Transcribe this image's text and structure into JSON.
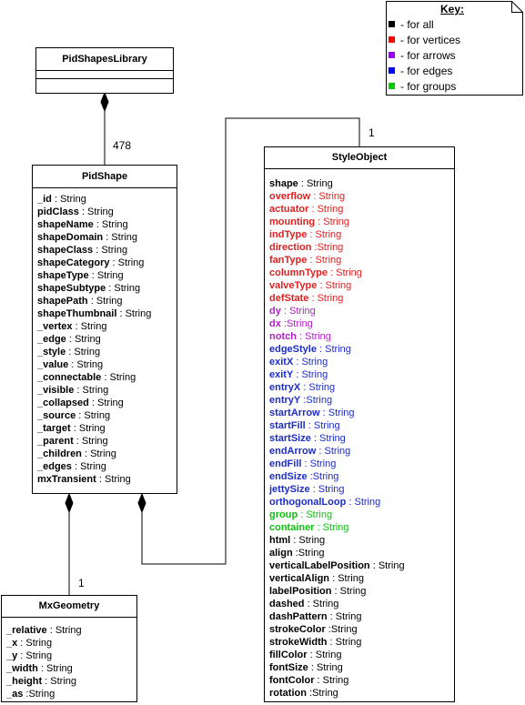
{
  "key": {
    "title": "Key:",
    "items": [
      {
        "label": "- for all",
        "color": "#000000"
      },
      {
        "label": "- for vertices",
        "color": "#ff0000"
      },
      {
        "label": "- for arrows",
        "color": "#9900ff"
      },
      {
        "label": "- for edges",
        "color": "#0000ff"
      },
      {
        "label": "- for groups",
        "color": "#00cc00"
      }
    ]
  },
  "colors": {
    "all": "#000000",
    "vertices": "#e02020",
    "arrows": "#b020c8",
    "edges": "#1c2cc8",
    "groups": "#10c010"
  },
  "classes": {
    "library": {
      "name": "PidShapesLibrary",
      "attributes": []
    },
    "pidShape": {
      "name": "PidShape",
      "attributes": [
        {
          "name": "_id",
          "type": " : String",
          "group": "all"
        },
        {
          "name": "pidClass",
          "type": " : String",
          "group": "all"
        },
        {
          "name": "shapeName",
          "type": " : String",
          "group": "all"
        },
        {
          "name": "shapeDomain",
          "type": " : String",
          "group": "all"
        },
        {
          "name": "shapeClass",
          "type": " : String",
          "group": "all"
        },
        {
          "name": "shapeCategory",
          "type": " : String",
          "group": "all"
        },
        {
          "name": "shapeType",
          "type": " : String",
          "group": "all"
        },
        {
          "name": "shapeSubtype",
          "type": " : String",
          "group": "all"
        },
        {
          "name": "shapePath",
          "type": " : String",
          "group": "all"
        },
        {
          "name": "shapeThumbnail",
          "type": " : String",
          "group": "all"
        },
        {
          "name": "_vertex",
          "type": " : String",
          "group": "all"
        },
        {
          "name": "_edge",
          "type": " : String",
          "group": "all"
        },
        {
          "name": "_style",
          "type": " : String",
          "group": "all"
        },
        {
          "name": "_value",
          "type": " : String",
          "group": "all"
        },
        {
          "name": "_connectable",
          "type": " : String",
          "group": "all"
        },
        {
          "name": "_visible",
          "type": " : String",
          "group": "all"
        },
        {
          "name": "_collapsed",
          "type": " : String",
          "group": "all"
        },
        {
          "name": "_source",
          "type": " : String",
          "group": "all"
        },
        {
          "name": "_target",
          "type": " : String",
          "group": "all"
        },
        {
          "name": "_parent",
          "type": " : String",
          "group": "all"
        },
        {
          "name": "_children",
          "type": " : String",
          "group": "all"
        },
        {
          "name": "_edges",
          "type": " : String",
          "group": "all"
        },
        {
          "name": "mxTransient",
          "type": " : String",
          "group": "all"
        }
      ]
    },
    "styleObject": {
      "name": "StyleObject",
      "attributes": [
        {
          "name": "shape",
          "type": " : String",
          "group": "all"
        },
        {
          "name": "overflow",
          "type": " : String",
          "group": "vertices"
        },
        {
          "name": "actuator",
          "type": " : String",
          "group": "vertices"
        },
        {
          "name": "mounting",
          "type": " : String",
          "group": "vertices"
        },
        {
          "name": "indType",
          "type": " : String",
          "group": "vertices"
        },
        {
          "name": "direction",
          "type": " :String",
          "group": "vertices"
        },
        {
          "name": "fanType",
          "type": " : String",
          "group": "vertices"
        },
        {
          "name": "columnType",
          "type": " : String",
          "group": "vertices"
        },
        {
          "name": "valveType",
          "type": " : String",
          "group": "vertices"
        },
        {
          "name": "defState",
          "type": " : String",
          "group": "vertices"
        },
        {
          "name": "dy",
          "type": " : String",
          "group": "arrows"
        },
        {
          "name": "dx",
          "type": " :String",
          "group": "arrows"
        },
        {
          "name": "notch",
          "type": " : String",
          "group": "arrows"
        },
        {
          "name": "edgeStyle",
          "type": " : String",
          "group": "edges"
        },
        {
          "name": "exitX",
          "type": " : String",
          "group": "edges"
        },
        {
          "name": "exitY",
          "type": " : String",
          "group": "edges"
        },
        {
          "name": "entryX",
          "type": " : String",
          "group": "edges"
        },
        {
          "name": "entryY",
          "type": " :String",
          "group": "edges"
        },
        {
          "name": "startArrow",
          "type": " : String",
          "group": "edges"
        },
        {
          "name": "startFill",
          "type": " : String",
          "group": "edges"
        },
        {
          "name": "startSize",
          "type": " : String",
          "group": "edges"
        },
        {
          "name": "endArrow",
          "type": " : String",
          "group": "edges"
        },
        {
          "name": "endFill",
          "type": " : String",
          "group": "edges"
        },
        {
          "name": "endSize",
          "type": " :String",
          "group": "edges"
        },
        {
          "name": "jettySize",
          "type": " : String",
          "group": "edges"
        },
        {
          "name": "orthogonalLoop",
          "type": " : String",
          "group": "edges"
        },
        {
          "name": "group",
          "type": " : String",
          "group": "groups"
        },
        {
          "name": "container",
          "type": " : String",
          "group": "groups"
        },
        {
          "name": "html",
          "type": " : String",
          "group": "all"
        },
        {
          "name": "align",
          "type": " :String",
          "group": "all"
        },
        {
          "name": "verticalLabelPosition",
          "type": " : String",
          "group": "all"
        },
        {
          "name": "verticalAlign",
          "type": " : String",
          "group": "all"
        },
        {
          "name": "labelPosition",
          "type": " : String",
          "group": "all"
        },
        {
          "name": "dashed",
          "type": " : String",
          "group": "all"
        },
        {
          "name": "dashPattern",
          "type": " : String",
          "group": "all"
        },
        {
          "name": "strokeColor",
          "type": " :String",
          "group": "all"
        },
        {
          "name": "strokeWidth",
          "type": " : String",
          "group": "all"
        },
        {
          "name": "fillColor",
          "type": " : String",
          "group": "all"
        },
        {
          "name": "fontSize",
          "type": " : String",
          "group": "all"
        },
        {
          "name": "fontColor",
          "type": " : String",
          "group": "all"
        },
        {
          "name": "rotation",
          "type": " :String",
          "group": "all"
        }
      ]
    },
    "mxGeometry": {
      "name": "MxGeometry",
      "attributes": [
        {
          "name": "_relative",
          "type": " : String",
          "group": "all"
        },
        {
          "name": "_x",
          "type": " : String",
          "group": "all"
        },
        {
          "name": "_y",
          "type": " : String",
          "group": "all"
        },
        {
          "name": "_width",
          "type": " : String",
          "group": "all"
        },
        {
          "name": "_height",
          "type": " : String",
          "group": "all"
        },
        {
          "name": "_as",
          "type": " :String",
          "group": "all"
        }
      ]
    }
  },
  "multiplicities": {
    "library_to_shape": "478",
    "shape_to_style": "1",
    "shape_to_geometry": "1"
  }
}
